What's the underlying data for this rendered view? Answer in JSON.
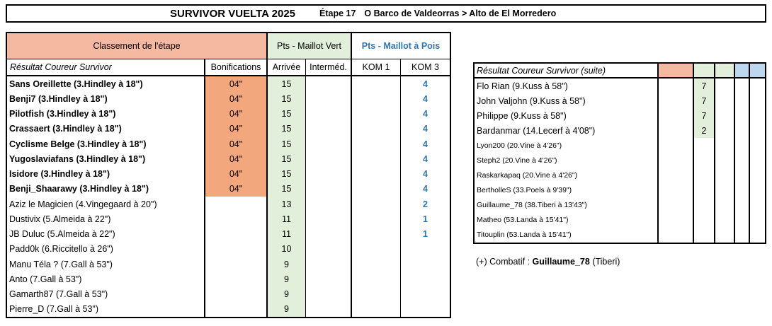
{
  "title": {
    "main": "SURVIVOR VUELTA 2025",
    "stage": "Étape 17",
    "route": "O Barco de Valdeorras > Alto de El Morredero"
  },
  "colors": {
    "salmon_header": "#F5B8A0",
    "salmon_cell": "#F2A77C",
    "green_cell": "#E2EFDA",
    "blue_cell": "#BDD7EE",
    "blue_text": "#2E75B6"
  },
  "left_table": {
    "group_headers": {
      "classement": "Classement de l'étape",
      "maillot_vert": "Pts - Maillot Vert",
      "maillot_pois": "Pts - Maillot à Pois"
    },
    "columns": {
      "result": "Résultat  Coureur Survivor",
      "bonifications": "Bonifications",
      "arrivee": "Arrivée",
      "intermediaire": "Interméd.",
      "kom1": "KOM 1",
      "kom3": "KOM 3"
    },
    "rows": [
      {
        "name": "Sans Oreillette (3.Hindley à 18\")",
        "bonif": "04\"",
        "arrivee": "15",
        "intermediaire": "",
        "kom1": "",
        "kom3": "4",
        "bold": true
      },
      {
        "name": "Benji7 (3.Hindley à 18\")",
        "bonif": "04\"",
        "arrivee": "15",
        "intermediaire": "",
        "kom1": "",
        "kom3": "4",
        "bold": true
      },
      {
        "name": "Pilotfish (3.Hindley à 18\")",
        "bonif": "04\"",
        "arrivee": "15",
        "intermediaire": "",
        "kom1": "",
        "kom3": "4",
        "bold": true
      },
      {
        "name": "Crassaert (3.Hindley à 18\")",
        "bonif": "04\"",
        "arrivee": "15",
        "intermediaire": "",
        "kom1": "",
        "kom3": "4",
        "bold": true
      },
      {
        "name": "Cyclisme Belge (3.Hindley à 18\")",
        "bonif": "04\"",
        "arrivee": "15",
        "intermediaire": "",
        "kom1": "",
        "kom3": "4",
        "bold": true
      },
      {
        "name": "Yugoslaviafans (3.Hindley à 18\")",
        "bonif": "04\"",
        "arrivee": "15",
        "intermediaire": "",
        "kom1": "",
        "kom3": "4",
        "bold": true
      },
      {
        "name": "Isidore (3.Hindley à 18\")",
        "bonif": "04\"",
        "arrivee": "15",
        "intermediaire": "",
        "kom1": "",
        "kom3": "4",
        "bold": true
      },
      {
        "name": "Benji_Shaarawy (3.Hindley à 18\")",
        "bonif": "04\"",
        "arrivee": "15",
        "intermediaire": "",
        "kom1": "",
        "kom3": "4",
        "bold": true
      },
      {
        "name": "Aziz le Magicien (4.Vingegaard à 20\")",
        "bonif": "",
        "arrivee": "13",
        "intermediaire": "",
        "kom1": "",
        "kom3": "2",
        "bold": false
      },
      {
        "name": "Dustivix (5.Almeida à 22\")",
        "bonif": "",
        "arrivee": "11",
        "intermediaire": "",
        "kom1": "",
        "kom3": "1",
        "bold": false
      },
      {
        "name": "JB Duluc (5.Almeida à 22\")",
        "bonif": "",
        "arrivee": "11",
        "intermediaire": "",
        "kom1": "",
        "kom3": "1",
        "bold": false
      },
      {
        "name": "Padd0k (6.Riccitello à 26\")",
        "bonif": "",
        "arrivee": "10",
        "intermediaire": "",
        "kom1": "",
        "kom3": "",
        "bold": false
      },
      {
        "name": "Manu Téla ? (7.Gall à 53\")",
        "bonif": "",
        "arrivee": "9",
        "intermediaire": "",
        "kom1": "",
        "kom3": "",
        "bold": false
      },
      {
        "name": "Anto (7.Gall à 53\")",
        "bonif": "",
        "arrivee": "9",
        "intermediaire": "",
        "kom1": "",
        "kom3": "",
        "bold": false
      },
      {
        "name": "Gamarth87 (7.Gall à 53\")",
        "bonif": "",
        "arrivee": "9",
        "intermediaire": "",
        "kom1": "",
        "kom3": "",
        "bold": false
      },
      {
        "name": "Pierre_D (7.Gall à 53\")",
        "bonif": "",
        "arrivee": "9",
        "intermediaire": "",
        "kom1": "",
        "kom3": "",
        "bold": false
      }
    ]
  },
  "right_table": {
    "header": "Résultat  Coureur Survivor (suite)",
    "rows": [
      {
        "name": "Flo Rian (9.Kuss à 58\")",
        "bonif": "",
        "arrivee": "7",
        "intermediaire": "",
        "kom1": "",
        "kom3": "",
        "small": false
      },
      {
        "name": "John Valjohn (9.Kuss à 58\")",
        "bonif": "",
        "arrivee": "7",
        "intermediaire": "",
        "kom1": "",
        "kom3": "",
        "small": false
      },
      {
        "name": "Philippe (9.Kuss à 58\")",
        "bonif": "",
        "arrivee": "7",
        "intermediaire": "",
        "kom1": "",
        "kom3": "",
        "small": false
      },
      {
        "name": "Bardanmar (14.Lecerf à 4'08\")",
        "bonif": "",
        "arrivee": "2",
        "intermediaire": "",
        "kom1": "",
        "kom3": "",
        "small": false
      },
      {
        "name": "Lyon200 (20.Vine à 4'26\")",
        "bonif": "",
        "arrivee": "",
        "intermediaire": "",
        "kom1": "",
        "kom3": "",
        "small": true
      },
      {
        "name": "Steph2 (20.Vine à 4'26\")",
        "bonif": "",
        "arrivee": "",
        "intermediaire": "",
        "kom1": "",
        "kom3": "",
        "small": true
      },
      {
        "name": "Raskarkapaq (20.Vine à 4'26\")",
        "bonif": "",
        "arrivee": "",
        "intermediaire": "",
        "kom1": "",
        "kom3": "",
        "small": true
      },
      {
        "name": "BertholleS (33.Poels à 9'39\")",
        "bonif": "",
        "arrivee": "",
        "intermediaire": "",
        "kom1": "",
        "kom3": "",
        "small": true
      },
      {
        "name": "Guillaume_78 (38.Tiberi à 13'43\")",
        "bonif": "",
        "arrivee": "",
        "intermediaire": "",
        "kom1": "",
        "kom3": "",
        "small": true
      },
      {
        "name": "Matheo (53.Landa à 15'41\")",
        "bonif": "",
        "arrivee": "",
        "intermediaire": "",
        "kom1": "",
        "kom3": "",
        "small": true
      },
      {
        "name": "Titouplin (53.Landa à 15'41\")",
        "bonif": "",
        "arrivee": "",
        "intermediaire": "",
        "kom1": "",
        "kom3": "",
        "small": true
      }
    ]
  },
  "footer": {
    "prefix": "(+) Combatif : ",
    "highlight": "Guillaume_78",
    "suffix": " (Tiberi)"
  }
}
